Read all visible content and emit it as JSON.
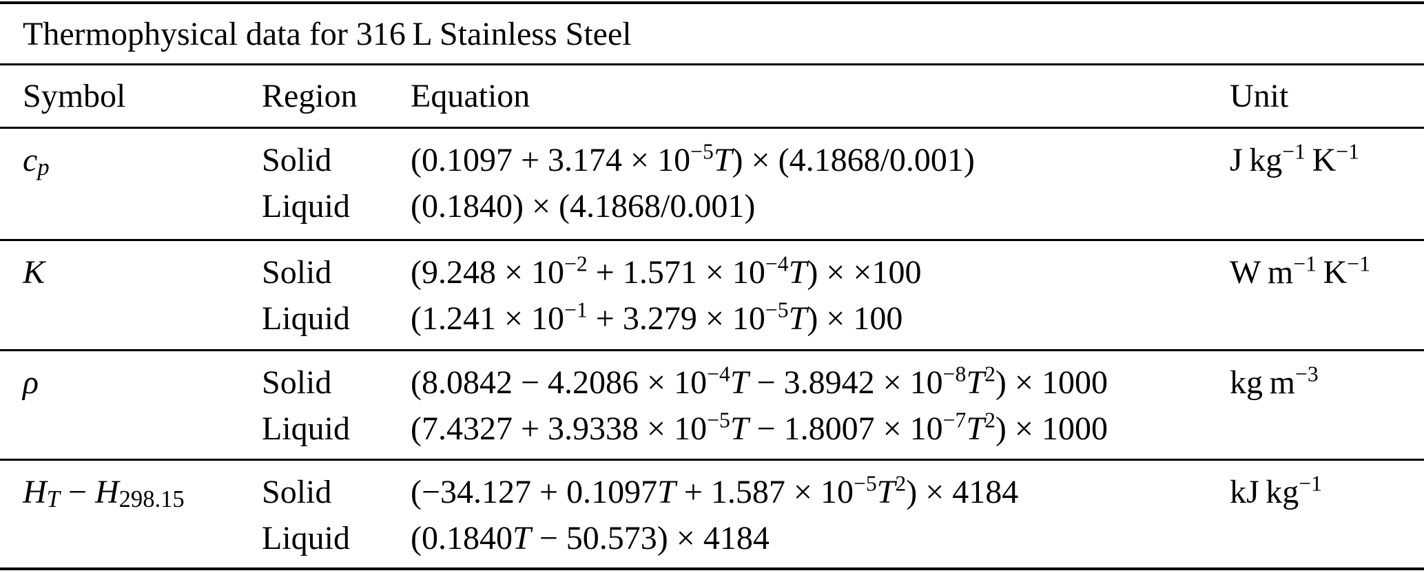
{
  "colors": {
    "background": "#ffffff",
    "text": "#000000",
    "rule": "#000000"
  },
  "table": {
    "title": "Thermophysical data for 316 L Stainless Steel",
    "headers": {
      "symbol": "Symbol",
      "region": "Region",
      "equation": "Equation",
      "unit": "Unit"
    },
    "rows": [
      {
        "symbol": [
          {
            "s": "i",
            "t": "c"
          },
          {
            "s": "isub",
            "t": "p"
          }
        ],
        "unit": [
          {
            "s": "n",
            "t": "J kg"
          },
          {
            "s": "sup",
            "t": "−1"
          },
          {
            "s": "n",
            "t": " K"
          },
          {
            "s": "sup",
            "t": "−1"
          }
        ],
        "entries": [
          {
            "region": "Solid",
            "equation": [
              {
                "s": "n",
                "t": "(0.1097 + 3.174 × 10"
              },
              {
                "s": "sup",
                "t": "−5"
              },
              {
                "s": "i",
                "t": "T"
              },
              {
                "s": "n",
                "t": ") × (4.1868/0.001)"
              }
            ]
          },
          {
            "region": "Liquid",
            "equation": [
              {
                "s": "n",
                "t": "(0.1840) × (4.1868/0.001)"
              }
            ]
          }
        ]
      },
      {
        "symbol": [
          {
            "s": "i",
            "t": "K"
          }
        ],
        "unit": [
          {
            "s": "n",
            "t": "W m"
          },
          {
            "s": "sup",
            "t": "−1"
          },
          {
            "s": "n",
            "t": " K"
          },
          {
            "s": "sup",
            "t": "−1"
          }
        ],
        "entries": [
          {
            "region": "Solid",
            "equation": [
              {
                "s": "n",
                "t": "(9.248 × 10"
              },
              {
                "s": "sup",
                "t": "−2"
              },
              {
                "s": "n",
                "t": " + 1.571 × 10"
              },
              {
                "s": "sup",
                "t": "−4"
              },
              {
                "s": "i",
                "t": "T"
              },
              {
                "s": "n",
                "t": ") × ×100"
              }
            ]
          },
          {
            "region": "Liquid",
            "equation": [
              {
                "s": "n",
                "t": "(1.241 × 10"
              },
              {
                "s": "sup",
                "t": "−1"
              },
              {
                "s": "n",
                "t": " + 3.279 × 10"
              },
              {
                "s": "sup",
                "t": "−5"
              },
              {
                "s": "i",
                "t": "T"
              },
              {
                "s": "n",
                "t": ") × 100"
              }
            ]
          }
        ]
      },
      {
        "symbol": [
          {
            "s": "i",
            "t": "ρ"
          }
        ],
        "unit": [
          {
            "s": "n",
            "t": "kg m"
          },
          {
            "s": "sup",
            "t": "−3"
          }
        ],
        "entries": [
          {
            "region": "Solid",
            "equation": [
              {
                "s": "n",
                "t": "(8.0842 − 4.2086 × 10"
              },
              {
                "s": "sup",
                "t": "−4"
              },
              {
                "s": "i",
                "t": "T"
              },
              {
                "s": "n",
                "t": " − 3.8942 × 10"
              },
              {
                "s": "sup",
                "t": "−8"
              },
              {
                "s": "i",
                "t": "T"
              },
              {
                "s": "sup",
                "t": "2"
              },
              {
                "s": "n",
                "t": ") × 1000"
              }
            ]
          },
          {
            "region": "Liquid",
            "equation": [
              {
                "s": "n",
                "t": "(7.4327 + 3.9338 × 10"
              },
              {
                "s": "sup",
                "t": "−5"
              },
              {
                "s": "i",
                "t": "T"
              },
              {
                "s": "n",
                "t": " − 1.8007 × 10"
              },
              {
                "s": "sup",
                "t": "−7"
              },
              {
                "s": "i",
                "t": "T"
              },
              {
                "s": "sup",
                "t": "2"
              },
              {
                "s": "n",
                "t": ") × 1000"
              }
            ]
          }
        ]
      },
      {
        "symbol": [
          {
            "s": "i",
            "t": "H"
          },
          {
            "s": "isub",
            "t": "T"
          },
          {
            "s": "n",
            "t": " − "
          },
          {
            "s": "i",
            "t": "H"
          },
          {
            "s": "sub",
            "t": "298.15"
          }
        ],
        "unit": [
          {
            "s": "n",
            "t": "kJ kg"
          },
          {
            "s": "sup",
            "t": "−1"
          }
        ],
        "entries": [
          {
            "region": "Solid",
            "equation": [
              {
                "s": "n",
                "t": "(−34.127 + 0.1097"
              },
              {
                "s": "i",
                "t": "T"
              },
              {
                "s": "n",
                "t": " + 1.587 × 10"
              },
              {
                "s": "sup",
                "t": "−5"
              },
              {
                "s": "i",
                "t": "T"
              },
              {
                "s": "sup",
                "t": "2"
              },
              {
                "s": "n",
                "t": ") × 4184"
              }
            ]
          },
          {
            "region": "Liquid",
            "equation": [
              {
                "s": "n",
                "t": "(0.1840"
              },
              {
                "s": "i",
                "t": "T"
              },
              {
                "s": "n",
                "t": " − 50.573) × 4184"
              }
            ]
          }
        ]
      }
    ]
  }
}
